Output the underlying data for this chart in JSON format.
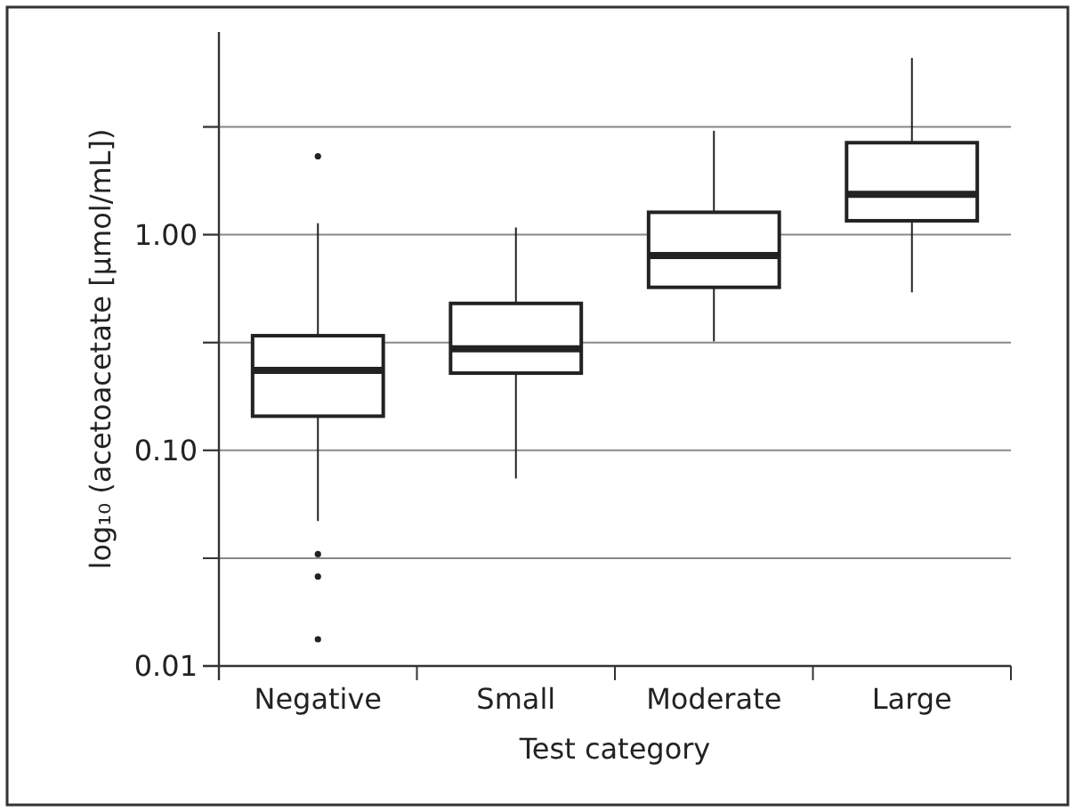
{
  "chart_data": {
    "type": "box",
    "xlabel": "Test category",
    "ylabel": "log₁₀ (acetoacetate [µmol/mL])",
    "categories": [
      "Negative",
      "Small",
      "Moderate",
      "Large"
    ],
    "boxes": [
      {
        "low": 0.047,
        "q1": 0.144,
        "median": 0.235,
        "q3": 0.34,
        "high": 1.13,
        "outliers": [
          2.31,
          0.033,
          0.026,
          0.0133
        ]
      },
      {
        "low": 0.074,
        "q1": 0.228,
        "median": 0.296,
        "q3": 0.48,
        "high": 1.08
      },
      {
        "low": 0.32,
        "q1": 0.57,
        "median": 0.8,
        "q3": 1.27,
        "high": 3.03
      },
      {
        "low": 0.54,
        "q1": 1.16,
        "median": 1.54,
        "q3": 2.67,
        "high": 6.6
      }
    ],
    "color": "#222222",
    "log": true,
    "ylim": [
      0.01,
      8.7
    ],
    "yticks": [
      {
        "value": 0.01,
        "label": "0.01"
      },
      {
        "value": 0.0316,
        "label": null
      },
      {
        "value": 0.1,
        "label": "0.10"
      },
      {
        "value": 0.316,
        "label": null
      },
      {
        "value": 1,
        "label": "1.00"
      },
      {
        "value": 3.16,
        "label": null
      }
    ],
    "grid": "y"
  }
}
